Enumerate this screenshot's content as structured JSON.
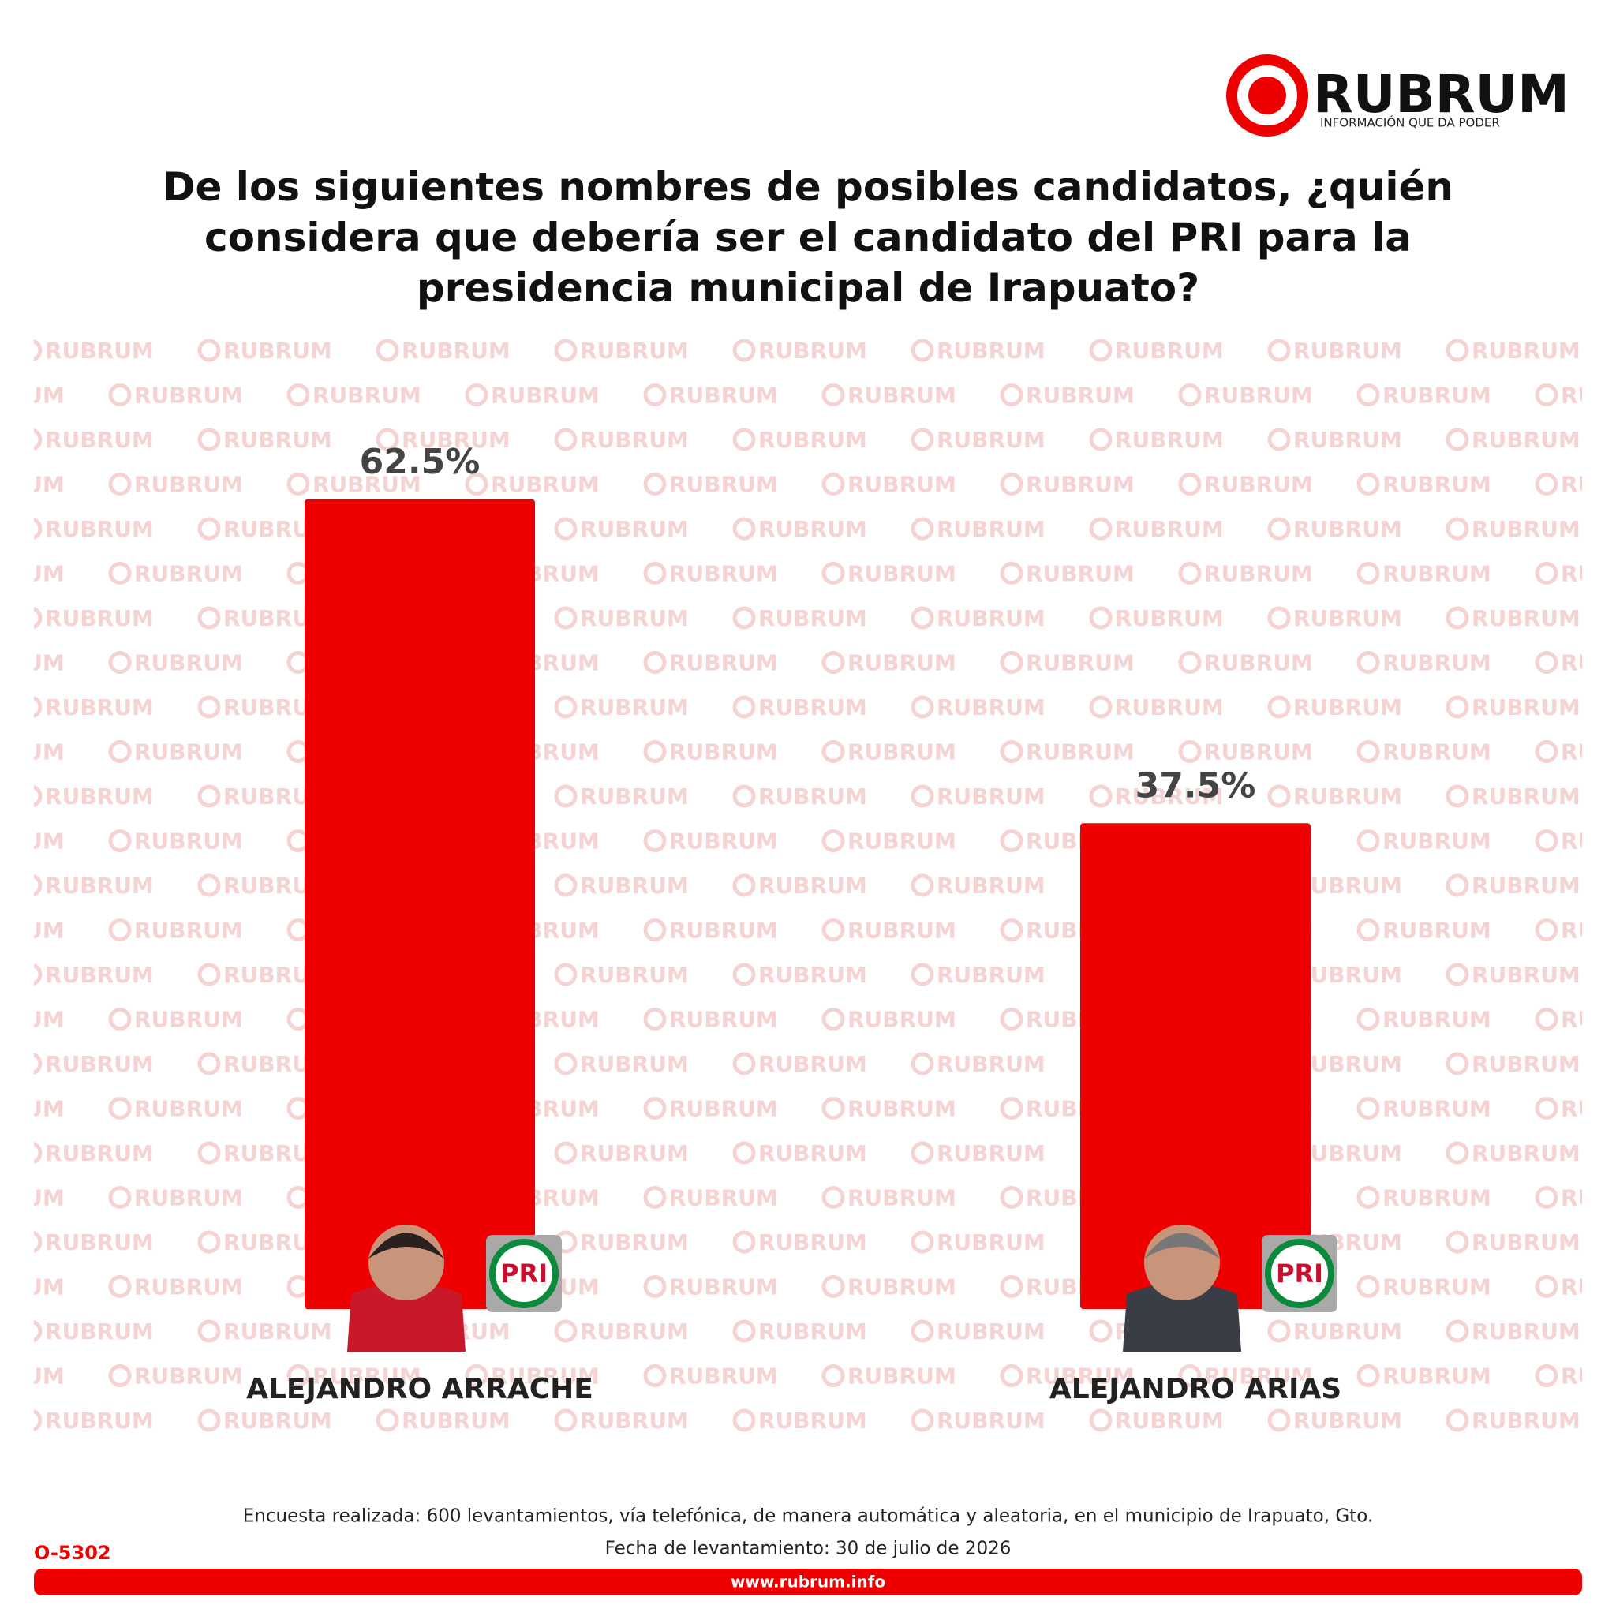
{
  "brand": {
    "name": "RUBRUM",
    "tagline": "INFORMACIÓN QUE DA PODER"
  },
  "party_logo": "PRI",
  "chart_data": {
    "type": "bar",
    "title": "De los siguientes nombres de posibles candidatos, ¿quién considera que debería ser el candidato del PRI para la presidencia municipal de Irapuato?",
    "categories": [
      "ALEJANDRO ARRACHE",
      "ALEJANDRO ARIAS"
    ],
    "values": [
      62.5,
      37.5
    ],
    "value_labels": [
      "62.5%",
      "37.5%"
    ],
    "color": "#ee0000",
    "ylim": [
      0,
      100
    ]
  },
  "footer": {
    "note": "Encuesta realizada: 600 levantamientos, vía telefónica, de manera automática y aleatoria, en el municipio de Irapuato, Gto.",
    "date": "Fecha de levantamiento: 30 de julio de 2026",
    "code": "O-5302",
    "url": "www.rubrum.info"
  }
}
